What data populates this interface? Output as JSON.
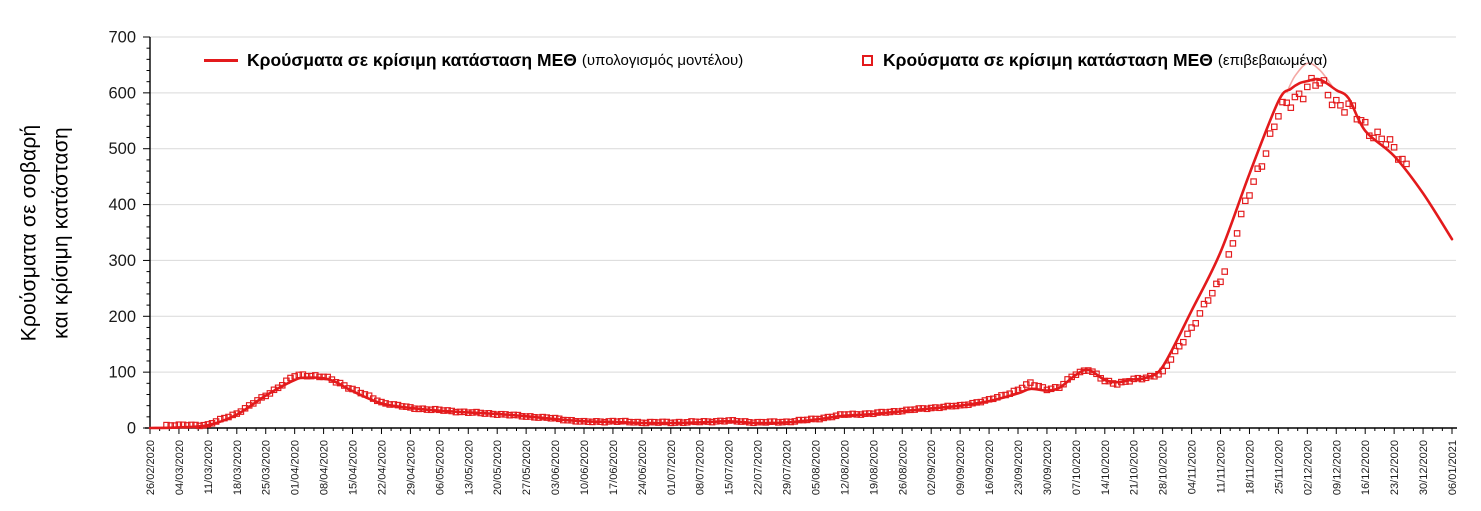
{
  "chart_data": {
    "type": "line",
    "title": "",
    "ylabel_lines": [
      "Κρούσματα σε σοβαρή",
      "και κρίσιμη κατάσταση"
    ],
    "xlabel": "",
    "ylim": [
      0,
      700
    ],
    "ytick_step": 100,
    "ytick_minor_step": 20,
    "grid": "horizontal-major",
    "legend_position": "top-inside",
    "x_total_days": 315,
    "x_tick_interval_days": 7,
    "x_tick_labels": [
      "26/02/2020",
      "04/03/2020",
      "11/03/2020",
      "18/03/2020",
      "25/03/2020",
      "01/04/2020",
      "08/04/2020",
      "15/04/2020",
      "22/04/2020",
      "29/04/2020",
      "06/05/2020",
      "13/05/2020",
      "20/05/2020",
      "27/05/2020",
      "03/06/2020",
      "10/06/2020",
      "17/06/2020",
      "24/06/2020",
      "01/07/2020",
      "08/07/2020",
      "15/07/2020",
      "22/07/2020",
      "29/07/2020",
      "05/08/2020",
      "12/08/2020",
      "19/08/2020",
      "26/08/2020",
      "02/09/2020",
      "09/09/2020",
      "16/09/2020",
      "23/09/2020",
      "30/09/2020",
      "07/10/2020",
      "14/10/2020",
      "21/10/2020",
      "28/10/2020",
      "04/11/2020",
      "11/11/2020",
      "18/11/2020",
      "25/11/2020",
      "02/12/2020",
      "09/12/2020",
      "16/12/2020",
      "23/12/2020",
      "30/12/2020",
      "06/01/2021"
    ],
    "series": [
      {
        "name": "Κρούσματα σε κρίσιμη κατάσταση ΜΕΘ (υπολογισμός μοντέλου)",
        "legend_main": "Κρούσματα σε κρίσιμη κατάσταση ΜΕΘ",
        "legend_paren": "(υπολογισμός μοντέλου)",
        "kind": "line",
        "color": "#e31a1c",
        "points_day_value": [
          [
            0,
            0
          ],
          [
            7,
            1
          ],
          [
            14,
            5
          ],
          [
            21,
            24
          ],
          [
            28,
            58
          ],
          [
            35,
            86
          ],
          [
            38,
            90
          ],
          [
            42,
            89
          ],
          [
            45,
            82
          ],
          [
            49,
            66
          ],
          [
            56,
            44
          ],
          [
            63,
            36
          ],
          [
            70,
            31
          ],
          [
            77,
            28
          ],
          [
            84,
            25
          ],
          [
            91,
            21
          ],
          [
            98,
            16
          ],
          [
            105,
            12
          ],
          [
            112,
            11
          ],
          [
            119,
            9
          ],
          [
            126,
            9
          ],
          [
            133,
            10
          ],
          [
            140,
            12
          ],
          [
            147,
            9
          ],
          [
            154,
            10
          ],
          [
            161,
            15
          ],
          [
            168,
            22
          ],
          [
            175,
            25
          ],
          [
            182,
            30
          ],
          [
            189,
            35
          ],
          [
            196,
            40
          ],
          [
            203,
            48
          ],
          [
            210,
            62
          ],
          [
            213,
            70
          ],
          [
            217,
            67
          ],
          [
            220,
            72
          ],
          [
            224,
            95
          ],
          [
            227,
            104
          ],
          [
            231,
            86
          ],
          [
            234,
            82
          ],
          [
            238,
            87
          ],
          [
            241,
            90
          ],
          [
            245,
            110
          ],
          [
            252,
            210
          ],
          [
            259,
            315
          ],
          [
            266,
            455
          ],
          [
            273,
            585
          ],
          [
            276,
            607
          ],
          [
            278,
            617
          ],
          [
            280,
            621
          ],
          [
            283,
            624
          ],
          [
            287,
            605
          ],
          [
            290,
            590
          ],
          [
            294,
            532
          ],
          [
            301,
            487
          ],
          [
            308,
            420
          ],
          [
            315,
            338
          ]
        ]
      },
      {
        "name": "Κρούσματα σε κρίσιμη κατάσταση ΜΕΘ (επιβεβαιωμένα)",
        "legend_main": "Κρούσματα σε κρίσιμη κατάσταση ΜΕΘ",
        "legend_paren": "(επιβεβαιωμένα)",
        "kind": "scatter-daily-open-squares",
        "color": "#e31a1c",
        "marker": "open-square",
        "first_day": 4,
        "last_day": 304,
        "anchor_points_day_value": [
          [
            4,
            5
          ],
          [
            12,
            5
          ],
          [
            14,
            6
          ],
          [
            21,
            26
          ],
          [
            28,
            58
          ],
          [
            35,
            93
          ],
          [
            38,
            95
          ],
          [
            42,
            92
          ],
          [
            49,
            70
          ],
          [
            56,
            46
          ],
          [
            63,
            36
          ],
          [
            70,
            32
          ],
          [
            77,
            28
          ],
          [
            84,
            25
          ],
          [
            91,
            21
          ],
          [
            98,
            17
          ],
          [
            105,
            11
          ],
          [
            112,
            12
          ],
          [
            119,
            10
          ],
          [
            126,
            10
          ],
          [
            133,
            11
          ],
          [
            140,
            13
          ],
          [
            147,
            10
          ],
          [
            154,
            11
          ],
          [
            161,
            16
          ],
          [
            168,
            24
          ],
          [
            175,
            26
          ],
          [
            182,
            31
          ],
          [
            189,
            36
          ],
          [
            196,
            40
          ],
          [
            203,
            50
          ],
          [
            210,
            68
          ],
          [
            213,
            80
          ],
          [
            217,
            70
          ],
          [
            220,
            72
          ],
          [
            224,
            98
          ],
          [
            227,
            105
          ],
          [
            231,
            84
          ],
          [
            234,
            80
          ],
          [
            238,
            86
          ],
          [
            241,
            90
          ],
          [
            245,
            100
          ],
          [
            252,
            180
          ],
          [
            259,
            265
          ],
          [
            266,
            420
          ],
          [
            273,
            560
          ],
          [
            277,
            592
          ],
          [
            280,
            612
          ],
          [
            283,
            615
          ],
          [
            287,
            585
          ],
          [
            290,
            572
          ],
          [
            294,
            540
          ],
          [
            298,
            520
          ],
          [
            301,
            495
          ],
          [
            304,
            472
          ]
        ]
      }
    ],
    "model_peak_overlay": {
      "color": "#f4a9a5",
      "points_day_value": [
        [
          275,
          600
        ],
        [
          277,
          630
        ],
        [
          280,
          653
        ],
        [
          283,
          641
        ],
        [
          286,
          612
        ]
      ]
    }
  },
  "colors": {
    "series_red": "#e31a1c",
    "peak_overlay": "#f4a9a5",
    "gridline": "#d9d9d9",
    "axis": "#000000",
    "tick_text": "#1a1a1a"
  }
}
